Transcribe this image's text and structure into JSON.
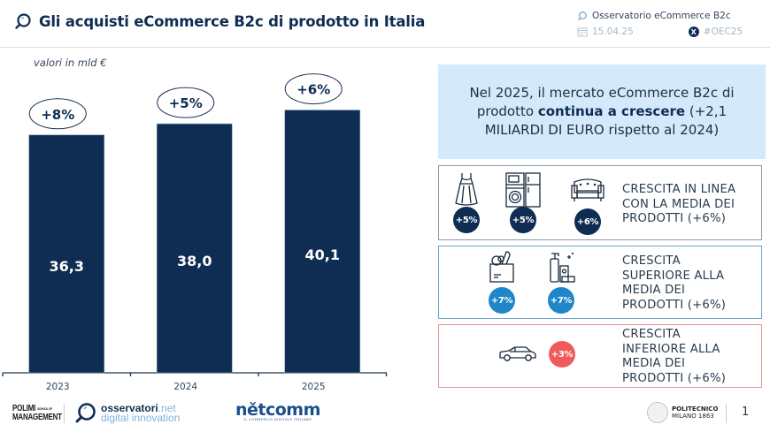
{
  "header": {
    "title": "Gli acquisti eCommerce B2c di prodotto in Italia",
    "observatory": "Osservatorio eCommerce B2c",
    "date": "15.04.25",
    "hashtag": "#OEC25",
    "x_badge": "X"
  },
  "chart_data": {
    "type": "bar",
    "title": "Gli acquisti eCommerce B2c di prodotto in Italia",
    "unit_label": "valori in mld €",
    "categories": [
      "2023",
      "2024",
      "2025"
    ],
    "values": [
      36.3,
      38.0,
      40.1
    ],
    "value_labels": [
      "36,3",
      "38,0",
      "40,1"
    ],
    "growth_labels": [
      "+8%",
      "+5%",
      "+6%"
    ],
    "xlabel": "",
    "ylabel": "",
    "ylim": [
      0,
      42
    ],
    "grid": false,
    "bar_color": "#0f2d52"
  },
  "summary": {
    "pre": "Nel 2025, il mercato eCommerce B2c di prodotto ",
    "bold": "continua a crescere",
    "post": " (+2,1 MILIARDI DI EURO rispetto al 2024)"
  },
  "groups": [
    {
      "text": "CRESCITA IN LINEA CON LA MEDIA DEI PRODOTTI (+6%)",
      "items": [
        {
          "icon": "dress-icon",
          "growth": "+5%"
        },
        {
          "icon": "appliances-icon",
          "growth": "+5%"
        },
        {
          "icon": "sofa-icon",
          "growth": "+6%"
        }
      ],
      "color": "#0f2d52"
    },
    {
      "text": "CRESCITA SUPERIORE ALLA MEDIA DEI PRODOTTI (+6%)",
      "items": [
        {
          "icon": "grocery-bag-icon",
          "growth": "+7%"
        },
        {
          "icon": "cleaning-products-icon",
          "growth": "+7%"
        }
      ],
      "color": "#1f86c8"
    },
    {
      "text": "CRESCITA INFERIORE ALLA MEDIA DEI PRODOTTI (+6%)",
      "items": [
        {
          "icon": "car-icon",
          "growth": "+3%"
        }
      ],
      "color": "#ef5a5a"
    }
  ],
  "footer": {
    "polimi_line1": "POLIMI",
    "polimi_school": "SCHOOL OF",
    "polimi_line2": "MANAGEMENT",
    "osv_name": "osservatori",
    "osv_tld": ".net",
    "osv_sub": "digital innovation",
    "netcomm_name": "nětcomm",
    "netcomm_sub": "IL COMMERCIO DIGITALE ITALIANO",
    "poli_line1": "POLITECNICO",
    "poli_line2": "MILANO 1863",
    "page_number": "1"
  }
}
